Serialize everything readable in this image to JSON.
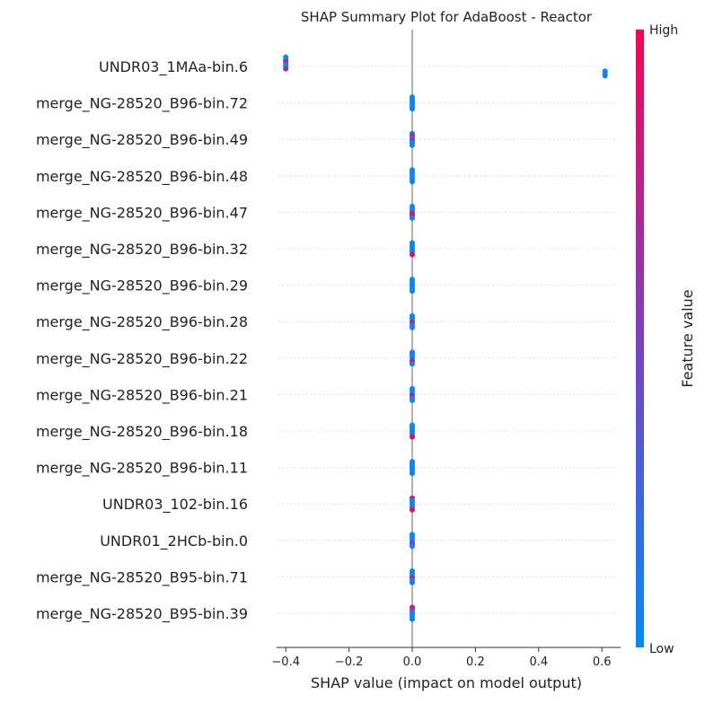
{
  "chart_data": {
    "type": "scatter",
    "title": "SHAP Summary Plot for AdaBoost - Reactor",
    "xlabel": "SHAP value (impact on model output)",
    "ylabel": "",
    "xlim": [
      -0.43,
      0.66
    ],
    "x_ticks": [
      -0.4,
      -0.2,
      0.0,
      0.2,
      0.4,
      0.6
    ],
    "x_tick_labels": [
      "−0.4",
      "−0.2",
      "0.0",
      "0.2",
      "0.4",
      "0.6"
    ],
    "zero_line": 0.0,
    "grid": "dotted horizontal per feature row",
    "features": [
      {
        "name": "UNDR03_1MAa-bin.6",
        "points": [
          {
            "x": -0.4,
            "v": 0.0
          },
          {
            "x": -0.4,
            "v": 0.05
          },
          {
            "x": -0.4,
            "v": 0.9
          },
          {
            "x": -0.4,
            "v": 0.1
          },
          {
            "x": -0.4,
            "v": 0.0
          },
          {
            "x": -0.4,
            "v": 0.6
          },
          {
            "x": 0.61,
            "v": 0.0
          },
          {
            "x": 0.61,
            "v": 0.1
          },
          {
            "x": 0.61,
            "v": 0.05
          }
        ]
      },
      {
        "name": "merge_NG-28520_B96-bin.72",
        "points": [
          {
            "x": 0.0,
            "v": 0.0
          },
          {
            "x": 0.0,
            "v": 0.05
          },
          {
            "x": 0.0,
            "v": 0.0
          },
          {
            "x": 0.0,
            "v": 0.1
          },
          {
            "x": 0.0,
            "v": 0.0
          },
          {
            "x": 0.0,
            "v": 0.05
          }
        ]
      },
      {
        "name": "merge_NG-28520_B96-bin.49",
        "points": [
          {
            "x": 0.0,
            "v": 0.0
          },
          {
            "x": 0.0,
            "v": 0.95
          },
          {
            "x": 0.0,
            "v": 0.05
          },
          {
            "x": 0.0,
            "v": 0.6
          },
          {
            "x": 0.0,
            "v": 0.0
          },
          {
            "x": 0.0,
            "v": 0.1
          }
        ]
      },
      {
        "name": "merge_NG-28520_B96-bin.48",
        "points": [
          {
            "x": 0.0,
            "v": 0.0
          },
          {
            "x": 0.0,
            "v": 0.05
          },
          {
            "x": 0.0,
            "v": 0.0
          },
          {
            "x": 0.0,
            "v": 0.1
          },
          {
            "x": 0.0,
            "v": 0.0
          },
          {
            "x": 0.0,
            "v": 0.05
          }
        ]
      },
      {
        "name": "merge_NG-28520_B96-bin.47",
        "points": [
          {
            "x": 0.0,
            "v": 0.0
          },
          {
            "x": 0.0,
            "v": 0.05
          },
          {
            "x": 0.0,
            "v": 0.0
          },
          {
            "x": 0.0,
            "v": 0.7
          },
          {
            "x": 0.0,
            "v": 0.95
          },
          {
            "x": 0.0,
            "v": 0.0
          }
        ]
      },
      {
        "name": "merge_NG-28520_B96-bin.32",
        "points": [
          {
            "x": 0.0,
            "v": 0.0
          },
          {
            "x": 0.0,
            "v": 0.05
          },
          {
            "x": 0.0,
            "v": 0.0
          },
          {
            "x": 0.0,
            "v": 0.1
          },
          {
            "x": 0.0,
            "v": 0.0
          },
          {
            "x": 0.0,
            "v": 0.95
          }
        ]
      },
      {
        "name": "merge_NG-28520_B96-bin.29",
        "points": [
          {
            "x": 0.0,
            "v": 0.0
          },
          {
            "x": 0.0,
            "v": 0.05
          },
          {
            "x": 0.0,
            "v": 0.0
          },
          {
            "x": 0.0,
            "v": 0.1
          },
          {
            "x": 0.0,
            "v": 0.0
          },
          {
            "x": 0.0,
            "v": 0.05
          }
        ]
      },
      {
        "name": "merge_NG-28520_B96-bin.28",
        "points": [
          {
            "x": 0.0,
            "v": 0.0
          },
          {
            "x": 0.0,
            "v": 0.05
          },
          {
            "x": 0.0,
            "v": 0.0
          },
          {
            "x": 0.0,
            "v": 0.95
          },
          {
            "x": 0.0,
            "v": 0.0
          },
          {
            "x": 0.0,
            "v": 0.05
          }
        ]
      },
      {
        "name": "merge_NG-28520_B96-bin.22",
        "points": [
          {
            "x": 0.0,
            "v": 0.0
          },
          {
            "x": 0.0,
            "v": 0.05
          },
          {
            "x": 0.0,
            "v": 0.0
          },
          {
            "x": 0.0,
            "v": 0.1
          },
          {
            "x": 0.0,
            "v": 0.95
          },
          {
            "x": 0.0,
            "v": 0.05
          }
        ]
      },
      {
        "name": "merge_NG-28520_B96-bin.21",
        "points": [
          {
            "x": 0.0,
            "v": 0.0
          },
          {
            "x": 0.0,
            "v": 0.05
          },
          {
            "x": 0.0,
            "v": 0.0
          },
          {
            "x": 0.0,
            "v": 0.95
          },
          {
            "x": 0.0,
            "v": 0.0
          },
          {
            "x": 0.0,
            "v": 0.05
          }
        ]
      },
      {
        "name": "merge_NG-28520_B96-bin.18",
        "points": [
          {
            "x": 0.0,
            "v": 0.0
          },
          {
            "x": 0.0,
            "v": 0.05
          },
          {
            "x": 0.0,
            "v": 0.0
          },
          {
            "x": 0.0,
            "v": 0.1
          },
          {
            "x": 0.0,
            "v": 0.0
          },
          {
            "x": 0.0,
            "v": 0.95
          }
        ]
      },
      {
        "name": "merge_NG-28520_B96-bin.11",
        "points": [
          {
            "x": 0.0,
            "v": 0.0
          },
          {
            "x": 0.0,
            "v": 0.05
          },
          {
            "x": 0.0,
            "v": 0.0
          },
          {
            "x": 0.0,
            "v": 0.1
          },
          {
            "x": 0.0,
            "v": 0.0
          },
          {
            "x": 0.0,
            "v": 0.05
          }
        ]
      },
      {
        "name": "UNDR03_102-bin.16",
        "points": [
          {
            "x": 0.0,
            "v": 0.95
          },
          {
            "x": 0.0,
            "v": 0.05
          },
          {
            "x": 0.0,
            "v": 0.0
          },
          {
            "x": 0.0,
            "v": 0.1
          },
          {
            "x": 0.0,
            "v": 0.0
          },
          {
            "x": 0.0,
            "v": 0.9
          }
        ]
      },
      {
        "name": "UNDR01_2HCb-bin.0",
        "points": [
          {
            "x": 0.0,
            "v": 0.0
          },
          {
            "x": 0.0,
            "v": 0.05
          },
          {
            "x": 0.0,
            "v": 0.0
          },
          {
            "x": 0.0,
            "v": 0.1
          },
          {
            "x": 0.0,
            "v": 0.7
          },
          {
            "x": 0.0,
            "v": 0.05
          }
        ]
      },
      {
        "name": "merge_NG-28520_B95-bin.71",
        "points": [
          {
            "x": 0.0,
            "v": 0.0
          },
          {
            "x": 0.0,
            "v": 0.05
          },
          {
            "x": 0.0,
            "v": 0.0
          },
          {
            "x": 0.0,
            "v": 0.95
          },
          {
            "x": 0.0,
            "v": 0.0
          },
          {
            "x": 0.0,
            "v": 0.05
          }
        ]
      },
      {
        "name": "merge_NG-28520_B95-bin.39",
        "points": [
          {
            "x": 0.0,
            "v": 0.95
          },
          {
            "x": 0.0,
            "v": 0.6
          },
          {
            "x": 0.0,
            "v": 0.0
          },
          {
            "x": 0.0,
            "v": 0.1
          },
          {
            "x": 0.0,
            "v": 0.0
          },
          {
            "x": 0.0,
            "v": 0.05
          }
        ]
      }
    ],
    "colorbar": {
      "label": "Feature value",
      "high_label": "High",
      "low_label": "Low",
      "low_color": "#008bfb",
      "mid_color": "#7d3fc4",
      "high_color": "#ff0052"
    },
    "colors": {
      "zero_line": "#999999",
      "grid": "#cccccc",
      "axis": "#333333",
      "text": "#333333"
    }
  }
}
